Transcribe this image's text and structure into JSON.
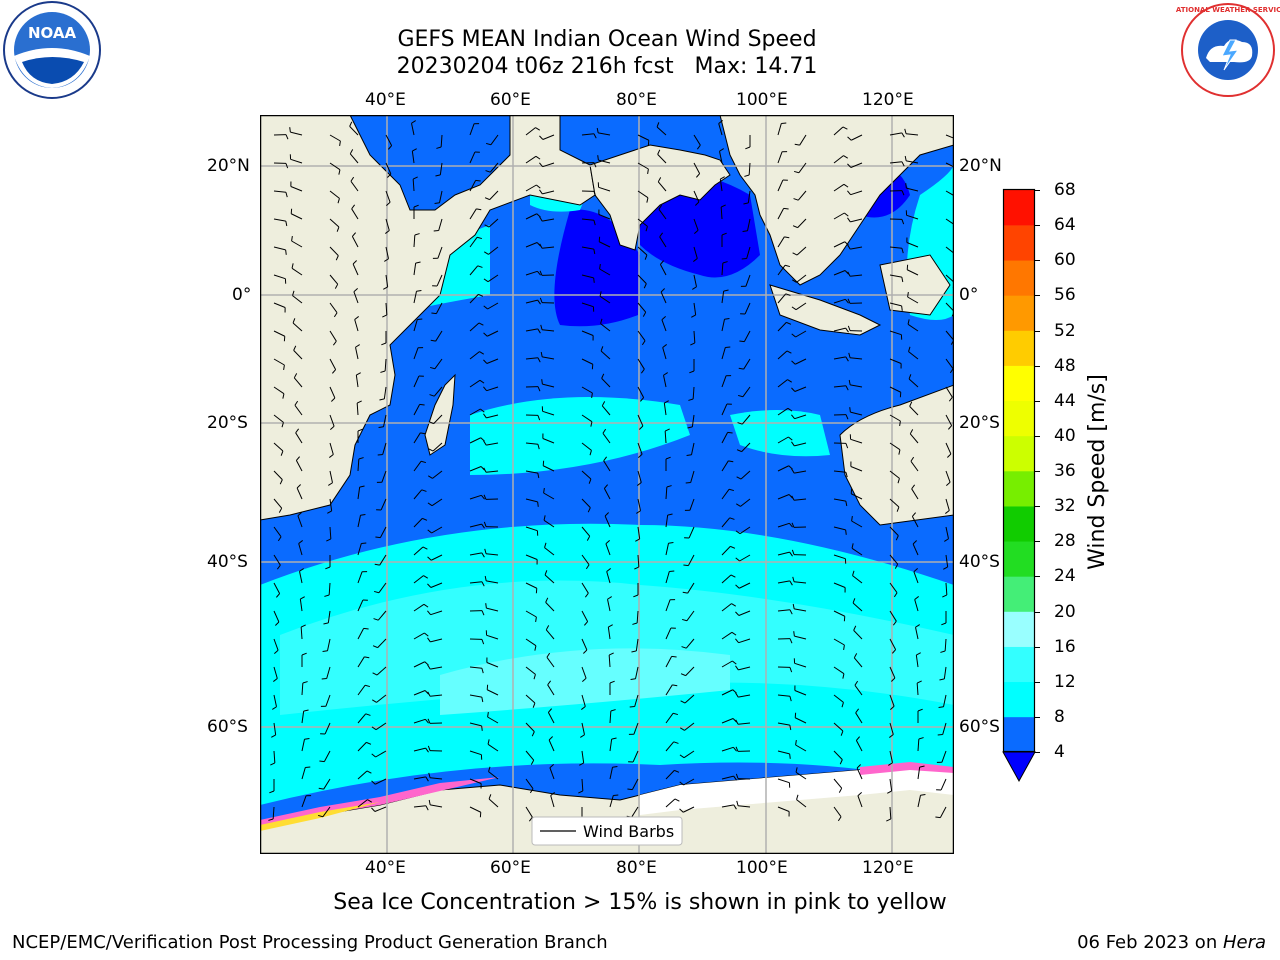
{
  "title": {
    "line1": "GEFS MEAN Indian Ocean Wind Speed",
    "line2": "20230204 t06z 216h fcst   Max: 14.71"
  },
  "logos": {
    "noaa_text": "NOAA",
    "nws_text": "NATIONAL WEATHER SERVICE"
  },
  "map": {
    "top_lon_labels": [
      "40°E",
      "60°E",
      "80°E",
      "100°E",
      "120°E"
    ],
    "bottom_lon_labels": [
      "40°E",
      "60°E",
      "80°E",
      "100°E",
      "120°E"
    ],
    "left_lat_labels": [
      "20°N",
      "0°",
      "20°S",
      "40°S",
      "60°S"
    ],
    "right_lat_labels": [
      "20°N",
      "0°",
      "20°S",
      "40°S",
      "60°S"
    ],
    "legend_label": "Wind Barbs",
    "colors": {
      "land": "#eeeedd",
      "ice_white": "#ffffff",
      "ice_pink": "#ff66cc",
      "ice_yellow": "#ffdd33"
    }
  },
  "colorbar": {
    "label": "Wind Speed [m/s]",
    "ticks": [
      "4",
      "8",
      "12",
      "16",
      "20",
      "24",
      "28",
      "32",
      "36",
      "40",
      "44",
      "48",
      "52",
      "56",
      "60",
      "64",
      "68"
    ],
    "band_colors": [
      "#0a6bff",
      "#00ffff",
      "#33ffff",
      "#99ffff",
      "#44ee77",
      "#22dd22",
      "#11cc00",
      "#77ee00",
      "#ccff00",
      "#eeff00",
      "#ffff00",
      "#ffcc00",
      "#ff9900",
      "#ff7700",
      "#ff4400",
      "#ff1100"
    ],
    "under_color": "#0000ff"
  },
  "caption": "Sea Ice Concentration > 15% is shown in pink to yellow",
  "footer": {
    "left": "NCEP/EMC/Verification Post Processing Product Generation Branch",
    "right_prefix": "06 Feb 2023 on ",
    "right_italic": "Hera"
  }
}
